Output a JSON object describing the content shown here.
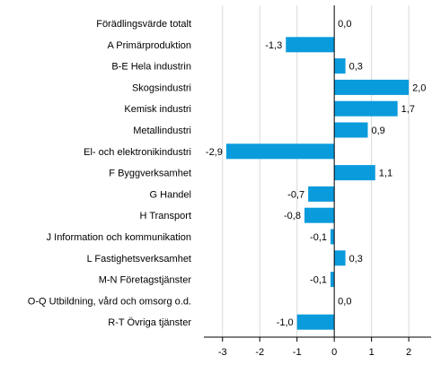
{
  "chart_data": {
    "type": "bar",
    "orientation": "horizontal",
    "categories": [
      "Förädlingsvärde totalt",
      "A Primärproduktion",
      "B-E Hela industrin",
      "Skogsindustri",
      "Kemisk industri",
      "Metallindustri",
      "El- och elektronikindustri",
      "F Byggverksamhet",
      "G Handel",
      "H Transport",
      "J Information och kommunikation",
      "L Fastighetsverksamhet",
      "M-N Företagstjänster",
      "O-Q Utbildning, vård och omsorg o.d.",
      "R-T Övriga tjänster"
    ],
    "values": [
      0.0,
      -1.3,
      0.3,
      2.0,
      1.7,
      0.9,
      -2.9,
      1.1,
      -0.7,
      -0.8,
      -0.1,
      0.3,
      -0.1,
      0.0,
      -1.0
    ],
    "value_labels": [
      "0,0",
      "-1,3",
      "0,3",
      "2,0",
      "1,7",
      "0,9",
      "-2,9",
      "1,1",
      "-0,7",
      "-0,8",
      "-0,1",
      "0,3",
      "-0,1",
      "0,0",
      "-1,0"
    ],
    "xlim": [
      -3.5,
      2.6
    ],
    "xticks": [
      -3,
      -2,
      -1,
      0,
      1,
      2
    ],
    "xtick_labels": [
      "-3",
      "-2",
      "-1",
      "0",
      "1",
      "2"
    ],
    "grid": "vertical",
    "legend": "none",
    "title": "",
    "xlabel": "",
    "ylabel": "",
    "colors": {
      "bar": "#0a9bdc",
      "grid": "#d9d9d9",
      "axis": "#000000",
      "text": "#000000"
    }
  }
}
